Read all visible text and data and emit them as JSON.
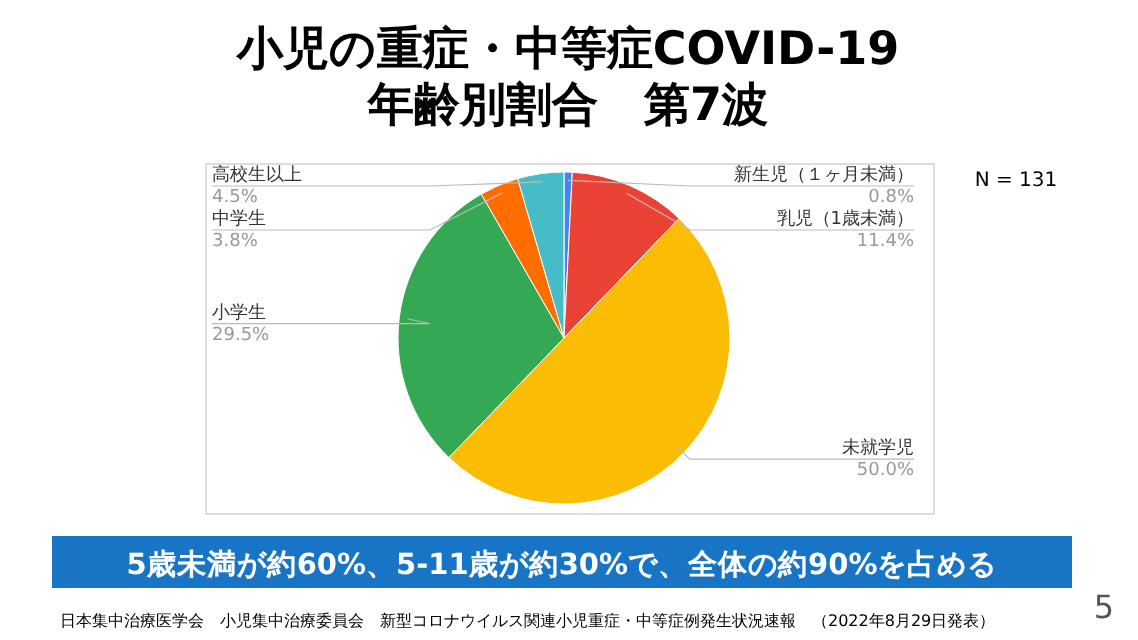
{
  "chart_data": {
    "type": "pie",
    "title": "小児の重症・中等症COVID-19\n年齢別割合　第7波",
    "categories": [
      "新生児（１ヶ月未満）",
      "乳児（1歳未満）",
      "未就学児",
      "小学生",
      "中学生",
      "高校生以上"
    ],
    "values": [
      0.8,
      11.4,
      50.0,
      29.5,
      3.8,
      4.5
    ],
    "value_labels": [
      "0.8%",
      "11.4%",
      "50.0%",
      "29.5%",
      "3.8%",
      "4.5%"
    ],
    "colors": [
      "#4285f4",
      "#ea4335",
      "#fbbc04",
      "#34a853",
      "#ff6d01",
      "#46bdc6"
    ],
    "annotations": [
      "N = 131",
      "5歳未満が約60%、5-11歳が約30%で、全体の約90%を占める",
      "日本集中治療医学会　小児集中治療委員会　新型コロナウイルス関連小児重症・中等症例発生状況速報　（2022年8月29日発表）",
      "5"
    ]
  }
}
